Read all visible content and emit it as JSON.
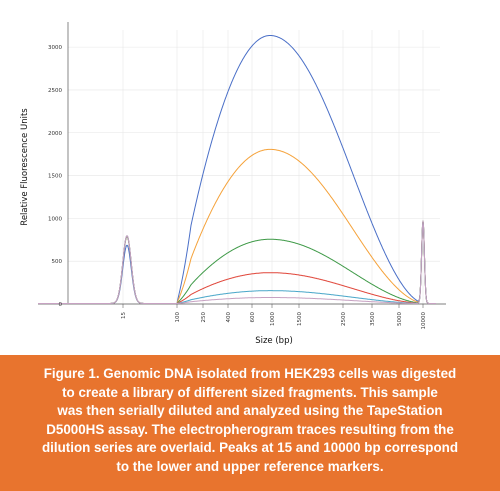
{
  "chart_data": {
    "type": "line",
    "xlabel": "Size (bp)",
    "ylabel": "Relative Fluorescence Units",
    "ylim": [
      0,
      3200
    ],
    "yticks": [
      0,
      500,
      1000,
      1500,
      2000,
      2500,
      3000
    ],
    "xtick_labels": [
      "15",
      "100",
      "250",
      "400",
      "600",
      "1000",
      "1500",
      "2500",
      "3500",
      "5000",
      "10000"
    ],
    "x_axis_scale": "non-linear (electrophoretic mobility)",
    "grid": true,
    "legend": "none",
    "markers": [
      {
        "size": "15",
        "label": "lower marker"
      },
      {
        "size": "10000",
        "label": "upper marker"
      }
    ],
    "series": [
      {
        "color": "#4a6fc7",
        "lower_marker_peak": 680,
        "smear_peak_size": "1000",
        "smear_peak": 3130,
        "upper_marker_peak": 960,
        "points": [
          [
            "15",
            680
          ],
          [
            "100",
            20
          ],
          [
            "250",
            1100
          ],
          [
            "400",
            1850
          ],
          [
            "600",
            2500
          ],
          [
            "1000",
            3130
          ],
          [
            "1500",
            2500
          ],
          [
            "2500",
            900
          ],
          [
            "3500",
            320
          ],
          [
            "5000",
            120
          ],
          [
            "10000",
            960
          ]
        ]
      },
      {
        "color": "#f5a23a",
        "lower_marker_peak": 780,
        "smear_peak_size": "1000",
        "smear_peak": 1800,
        "upper_marker_peak": 960,
        "points": [
          [
            "15",
            780
          ],
          [
            "100",
            15
          ],
          [
            "250",
            750
          ],
          [
            "400",
            1180
          ],
          [
            "600",
            1480
          ],
          [
            "1000",
            1800
          ],
          [
            "1500",
            1500
          ],
          [
            "2500",
            560
          ],
          [
            "3500",
            160
          ],
          [
            "5000",
            60
          ],
          [
            "10000",
            960
          ]
        ]
      },
      {
        "color": "#3f9a48",
        "lower_marker_peak": 780,
        "smear_peak_size": "1000",
        "smear_peak": 750,
        "upper_marker_peak": 960,
        "points": [
          [
            "15",
            780
          ],
          [
            "100",
            10
          ],
          [
            "250",
            300
          ],
          [
            "400",
            460
          ],
          [
            "600",
            600
          ],
          [
            "1000",
            750
          ],
          [
            "1500",
            640
          ],
          [
            "2500",
            240
          ],
          [
            "3500",
            90
          ],
          [
            "5000",
            30
          ],
          [
            "10000",
            960
          ]
        ]
      },
      {
        "color": "#e0463a",
        "lower_marker_peak": 790,
        "smear_peak_size": "1000",
        "smear_peak": 360,
        "upper_marker_peak": 960,
        "points": [
          [
            "15",
            790
          ],
          [
            "100",
            8
          ],
          [
            "250",
            150
          ],
          [
            "400",
            230
          ],
          [
            "600",
            300
          ],
          [
            "1000",
            360
          ],
          [
            "1500",
            320
          ],
          [
            "2500",
            120
          ],
          [
            "3500",
            45
          ],
          [
            "5000",
            15
          ],
          [
            "10000",
            960
          ]
        ]
      },
      {
        "color": "#4aa7c9",
        "lower_marker_peak": 790,
        "smear_peak_size": "1000",
        "smear_peak": 150,
        "upper_marker_peak": 960,
        "points": [
          [
            "15",
            790
          ],
          [
            "100",
            5
          ],
          [
            "250",
            60
          ],
          [
            "400",
            95
          ],
          [
            "600",
            125
          ],
          [
            "1000",
            150
          ],
          [
            "1500",
            130
          ],
          [
            "2500",
            50
          ],
          [
            "3500",
            20
          ],
          [
            "5000",
            8
          ],
          [
            "10000",
            960
          ]
        ]
      },
      {
        "color": "#c7a2c2",
        "lower_marker_peak": 790,
        "smear_peak_size": "1000",
        "smear_peak": 70,
        "upper_marker_peak": 960,
        "points": [
          [
            "15",
            790
          ],
          [
            "100",
            3
          ],
          [
            "250",
            28
          ],
          [
            "400",
            45
          ],
          [
            "600",
            60
          ],
          [
            "1000",
            70
          ],
          [
            "1500",
            62
          ],
          [
            "2500",
            25
          ],
          [
            "3500",
            10
          ],
          [
            "5000",
            4
          ],
          [
            "10000",
            960
          ]
        ]
      }
    ]
  },
  "caption": {
    "lines": [
      "Figure 1. Genomic DNA isolated from HEK293 cells was digested",
      "to create a library of different sized fragments. This sample",
      "was then serially diluted and analyzed using the TapeStation",
      "D5000HS assay. The electropherogram traces resulting from the",
      "dilution series are overlaid. Peaks at 15 and 10000 bp correspond",
      "to the lower and upper reference markers."
    ],
    "background": "#e8742e"
  }
}
